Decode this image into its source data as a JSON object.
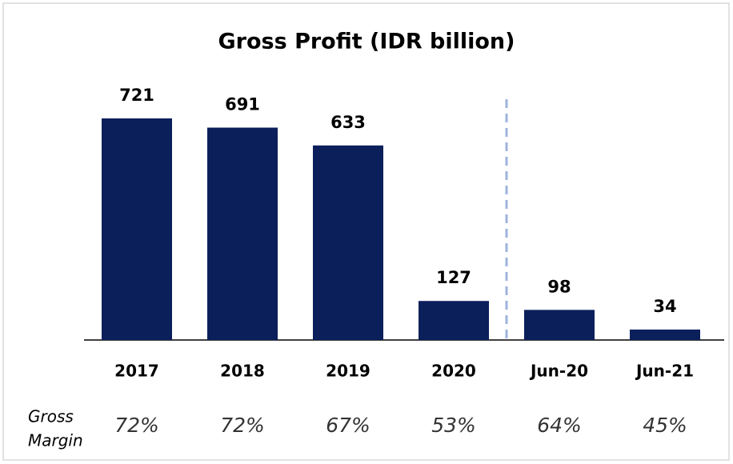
{
  "chart_data": {
    "type": "bar",
    "title": "Gross Profit (IDR billion)",
    "categories": [
      "2017",
      "2018",
      "2019",
      "2020",
      "Jun-20",
      "Jun-21"
    ],
    "values": [
      721,
      691,
      633,
      127,
      98,
      34
    ],
    "color": "#0b1f5b",
    "gross_margin": {
      "label": [
        "Gross",
        "Margin"
      ],
      "values": [
        72,
        72,
        67,
        53,
        64,
        45
      ],
      "value_labels": [
        "72%",
        "72%",
        "67%",
        "53%",
        "64%",
        "45%"
      ]
    }
  }
}
